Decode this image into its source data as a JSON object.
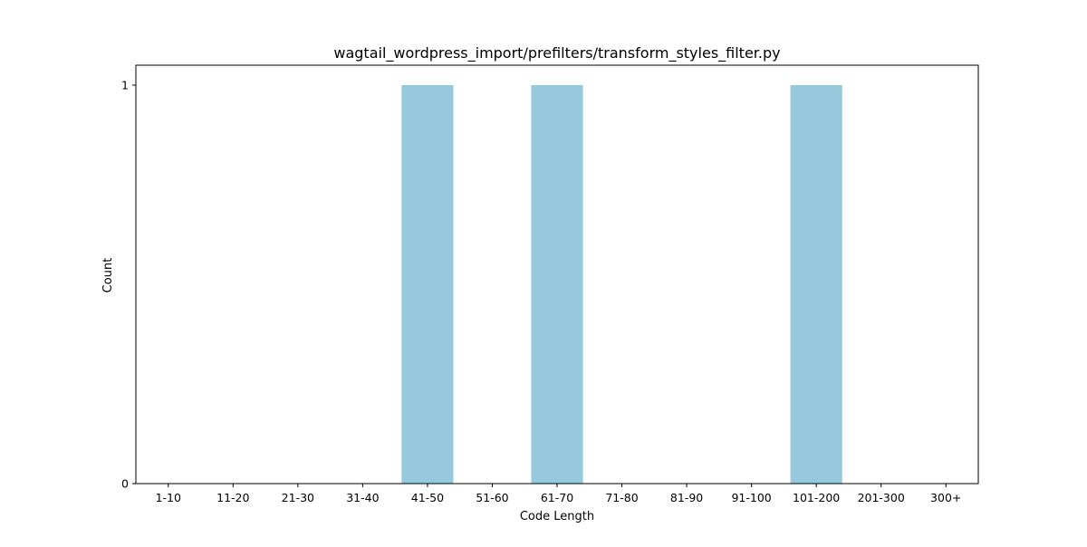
{
  "chart_data": {
    "type": "bar",
    "title": "wagtail_wordpress_import/prefilters/transform_styles_filter.py",
    "xlabel": "Code Length",
    "ylabel": "Count",
    "categories": [
      "1-10",
      "11-20",
      "21-30",
      "31-40",
      "41-50",
      "51-60",
      "61-70",
      "71-80",
      "81-90",
      "91-100",
      "101-200",
      "201-300",
      "300+"
    ],
    "values": [
      0,
      0,
      0,
      0,
      1,
      0,
      1,
      0,
      0,
      0,
      1,
      0,
      0
    ],
    "yticks": [
      "0",
      "1"
    ],
    "ylim": [
      0,
      1.05
    ],
    "grid": false,
    "bar_color": "#96c9dc"
  }
}
